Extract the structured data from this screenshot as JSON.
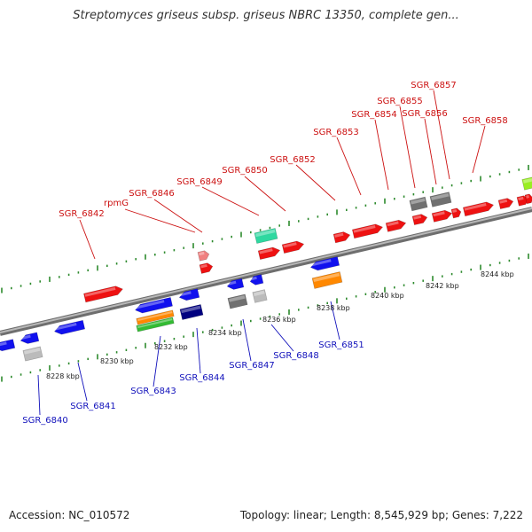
{
  "title": "Streptomyces griseus subsp. griseus NBRC 13350, complete gen...",
  "footer": {
    "accession": "Accession: NC_010572",
    "topology": "Topology: linear; Length: 8,545,929 bp; Genes: 7,222"
  },
  "colors": {
    "forward_gene": "#ee1111",
    "reverse_gene": "#1111ee",
    "forward_label": "#cc1111",
    "reverse_label": "#1111bb",
    "backbone": "#8c8c8c",
    "ruler": "#2d8a2d"
  },
  "scale": {
    "unit": "kbp",
    "ticks": [
      {
        "label": "8228 kbp"
      },
      {
        "label": "8230 kbp"
      },
      {
        "label": "8232 kbp"
      },
      {
        "label": "8234 kbp"
      },
      {
        "label": "8236 kbp"
      },
      {
        "label": "8238 kbp"
      },
      {
        "label": "8240 kbp"
      },
      {
        "label": "8242 kbp"
      },
      {
        "label": "8244 kbp"
      }
    ]
  },
  "forward_labels": [
    "SGR_6842",
    "rpmG",
    "SGR_6846",
    "SGR_6849",
    "SGR_6850",
    "SGR_6852",
    "SGR_6853",
    "SGR_6854",
    "SGR_6855",
    "SGR_6856",
    "SGR_6857",
    "SGR_6858"
  ],
  "reverse_labels": [
    "SGR_6840",
    "SGR_6841",
    "SGR_6843",
    "SGR_6844",
    "SGR_6847",
    "SGR_6848",
    "SGR_6851"
  ]
}
